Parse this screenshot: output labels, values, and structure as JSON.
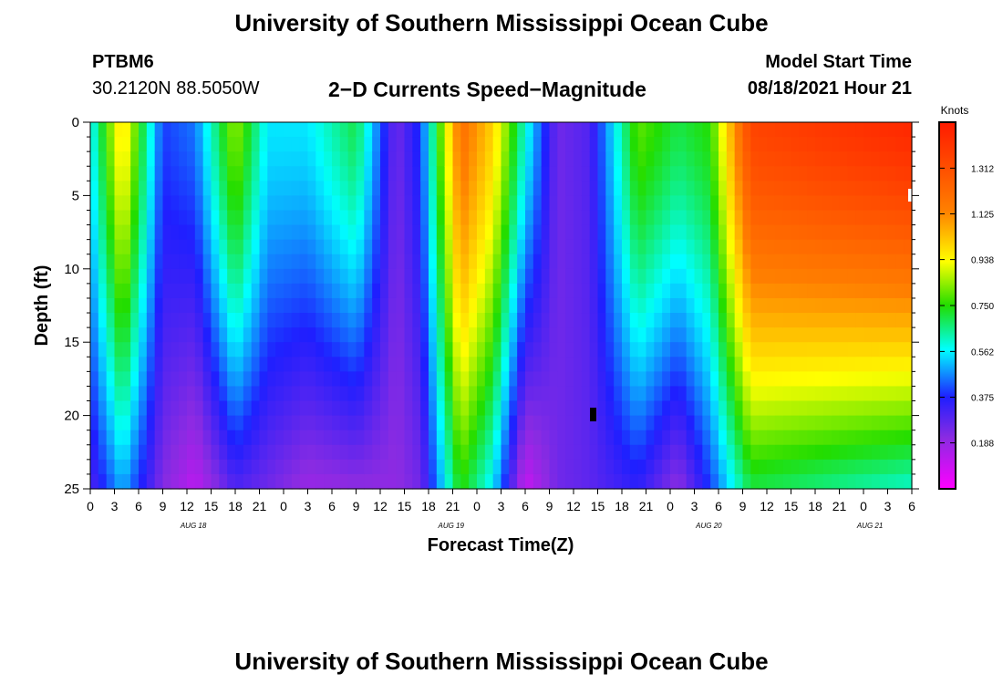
{
  "header": {
    "title_top": "University of Southern Mississippi Ocean Cube",
    "title_bottom": "University of Southern Mississippi Ocean Cube",
    "station_id": "PTBM6",
    "coordinates": "30.2120N  88.5050W",
    "subtitle": "2−D Currents Speed−Magnitude",
    "model_start_label": "Model Start Time",
    "model_start_value": "08/18/2021 Hour 21"
  },
  "chart_data": {
    "type": "heatmap",
    "xlabel": "Forecast Time(Z)",
    "ylabel": "Depth (ft)",
    "colorbar_label": "Knots",
    "x_tick_labels": [
      "0",
      "3",
      "6",
      "9",
      "12",
      "15",
      "18",
      "21",
      "0",
      "3",
      "6",
      "9",
      "12",
      "15",
      "18",
      "21",
      "0",
      "3",
      "6",
      "9",
      "12",
      "15",
      "18",
      "21",
      "0",
      "3",
      "6",
      "9",
      "12",
      "15",
      "18",
      "21",
      "0",
      "3",
      "6"
    ],
    "forecast_hours": [
      0,
      102
    ],
    "day_labels": [
      {
        "label": "AUG 18",
        "hour": 12.8
      },
      {
        "label": "AUG 19",
        "hour": 44.8
      },
      {
        "label": "AUG 20",
        "hour": 76.8
      },
      {
        "label": "AUG 21",
        "hour": 96.8
      }
    ],
    "y_tick_labels": [
      "0",
      "5",
      "10",
      "15",
      "20",
      "25"
    ],
    "ylim": [
      0,
      25
    ],
    "y_inverted": true,
    "colorbar_ticks": [
      "1.312",
      "1.125",
      "0.938",
      "0.750",
      "0.562",
      "0.375",
      "0.188"
    ],
    "colorbar_range": [
      0,
      1.5
    ],
    "colors": {
      "magenta": "#ff00ff",
      "violet": "#8a2be2",
      "blue": "#1f1fff",
      "cyan": "#00ffff",
      "green": "#22dd00",
      "yellow": "#ffff00",
      "orange": "#ff7f00",
      "red": "#ff1a00"
    },
    "speed_profile_samples": [
      {
        "hour": 0,
        "surface": 0.55,
        "bottom": 0.3
      },
      {
        "hour": 4,
        "surface": 1.0,
        "bottom": 0.5
      },
      {
        "hour": 9,
        "surface": 0.4,
        "bottom": 0.22
      },
      {
        "hour": 13,
        "surface": 0.45,
        "bottom": 0.12
      },
      {
        "hour": 18,
        "surface": 0.85,
        "bottom": 0.3
      },
      {
        "hour": 22,
        "surface": 0.55,
        "bottom": 0.25
      },
      {
        "hour": 27,
        "surface": 0.55,
        "bottom": 0.18
      },
      {
        "hour": 33,
        "surface": 0.7,
        "bottom": 0.2
      },
      {
        "hour": 38,
        "surface": 0.25,
        "bottom": 0.2
      },
      {
        "hour": 41,
        "surface": 0.4,
        "bottom": 0.25
      },
      {
        "hour": 46,
        "surface": 1.2,
        "bottom": 0.75
      },
      {
        "hour": 50,
        "surface": 1.0,
        "bottom": 0.55
      },
      {
        "hour": 54,
        "surface": 0.6,
        "bottom": 0.1
      },
      {
        "hour": 58,
        "surface": 0.25,
        "bottom": 0.25
      },
      {
        "hour": 62,
        "surface": 0.3,
        "bottom": 0.28
      },
      {
        "hour": 68,
        "surface": 0.8,
        "bottom": 0.35
      },
      {
        "hour": 73,
        "surface": 0.7,
        "bottom": 0.2
      },
      {
        "hour": 77,
        "surface": 0.75,
        "bottom": 0.4
      },
      {
        "hour": 82,
        "surface": 1.35,
        "bottom": 0.7
      },
      {
        "hour": 102,
        "surface": 1.45,
        "bottom": 0.6
      }
    ]
  }
}
